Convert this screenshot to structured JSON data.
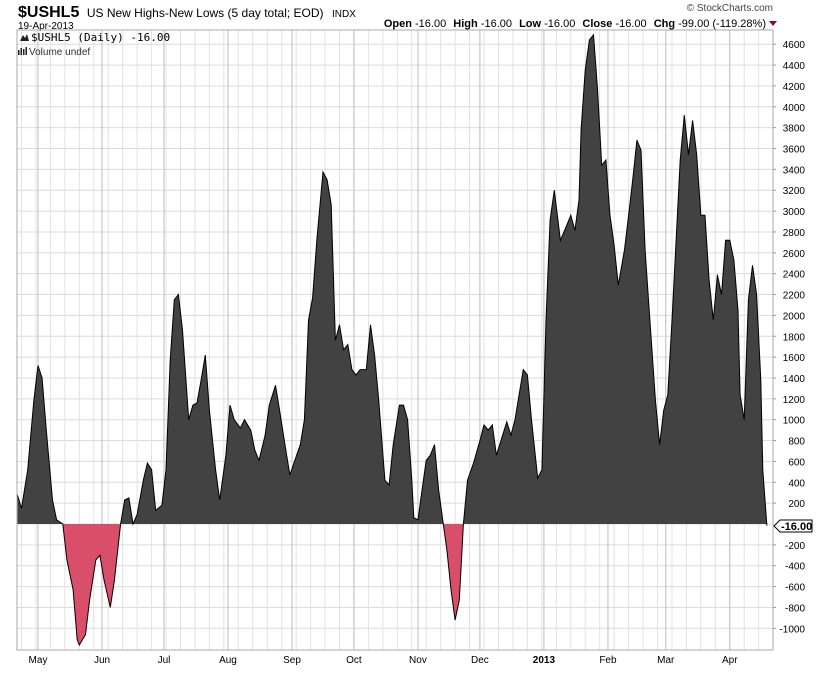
{
  "header": {
    "symbol": "$USHL5",
    "name": "US New Highs-New Lows (5 day total; EOD)",
    "exchange": "INDX",
    "date": "19-Apr-2013",
    "copyright": "© StockCharts.com",
    "open_label": "Open",
    "open_value": "-16.00",
    "high_label": "High",
    "high_value": "-16.00",
    "low_label": "Low",
    "low_value": "-16.00",
    "close_label": "Close",
    "close_value": "-16.00",
    "chg_label": "Chg",
    "chg_value": "-99.00 (-119.28%)",
    "chg_direction": "down"
  },
  "legend": {
    "series": "$USHL5 (Daily) -16.00",
    "volume": "Volume undef"
  },
  "last_value_tag": "-16.00",
  "colors": {
    "positive_fill": "#424242",
    "negative_fill": "#d94f69",
    "line": "#000000",
    "down_arrow": "#990033"
  },
  "chart_data": {
    "type": "area",
    "ylim": [
      -1200,
      4700
    ],
    "grid": true,
    "y_ticks": [
      "4600",
      "4400",
      "4200",
      "4000",
      "3800",
      "3600",
      "3400",
      "3200",
      "3000",
      "2800",
      "2600",
      "2400",
      "2200",
      "2000",
      "1800",
      "1600",
      "1400",
      "1200",
      "1000",
      "800",
      "600",
      "400",
      "200",
      "-200",
      "-400",
      "-600",
      "-800",
      "-1000"
    ],
    "x_ticks": [
      {
        "label": "May",
        "date": "2012-05-01"
      },
      {
        "label": "Jun",
        "date": "2012-06-01"
      },
      {
        "label": "Jul",
        "date": "2012-07-01"
      },
      {
        "label": "Aug",
        "date": "2012-08-01"
      },
      {
        "label": "Sep",
        "date": "2012-09-01"
      },
      {
        "label": "Oct",
        "date": "2012-10-01"
      },
      {
        "label": "Nov",
        "date": "2012-11-01"
      },
      {
        "label": "Dec",
        "date": "2012-12-01"
      },
      {
        "label": "2013",
        "date": "2013-01-01",
        "bold": true
      },
      {
        "label": "Feb",
        "date": "2013-02-01"
      },
      {
        "label": "Mar",
        "date": "2013-03-01"
      },
      {
        "label": "Apr",
        "date": "2013-04-01"
      }
    ],
    "points": [
      [
        "2012-04-21",
        280
      ],
      [
        "2012-04-23",
        150
      ],
      [
        "2012-04-26",
        520
      ],
      [
        "2012-04-29",
        1190
      ],
      [
        "2012-05-01",
        1520
      ],
      [
        "2012-05-03",
        1400
      ],
      [
        "2012-05-05",
        900
      ],
      [
        "2012-05-08",
        230
      ],
      [
        "2012-05-10",
        40
      ],
      [
        "2012-05-13",
        0
      ],
      [
        "2012-05-15",
        -345
      ],
      [
        "2012-05-18",
        -630
      ],
      [
        "2012-05-20",
        -1110
      ],
      [
        "2012-05-21",
        -1160
      ],
      [
        "2012-05-24",
        -1060
      ],
      [
        "2012-05-26",
        -730
      ],
      [
        "2012-05-29",
        -345
      ],
      [
        "2012-05-31",
        -300
      ],
      [
        "2012-06-02",
        -540
      ],
      [
        "2012-06-05",
        -800
      ],
      [
        "2012-06-07",
        -540
      ],
      [
        "2012-06-10",
        0
      ],
      [
        "2012-06-12",
        230
      ],
      [
        "2012-06-14",
        250
      ],
      [
        "2012-06-16",
        0
      ],
      [
        "2012-06-18",
        90
      ],
      [
        "2012-06-21",
        420
      ],
      [
        "2012-06-23",
        585
      ],
      [
        "2012-06-25",
        520
      ],
      [
        "2012-06-27",
        130
      ],
      [
        "2012-06-30",
        180
      ],
      [
        "2012-07-02",
        520
      ],
      [
        "2012-07-04",
        1570
      ],
      [
        "2012-07-06",
        2150
      ],
      [
        "2012-07-08",
        2200
      ],
      [
        "2012-07-10",
        1860
      ],
      [
        "2012-07-13",
        1000
      ],
      [
        "2012-07-15",
        1140
      ],
      [
        "2012-07-17",
        1160
      ],
      [
        "2012-07-19",
        1380
      ],
      [
        "2012-07-21",
        1620
      ],
      [
        "2012-07-23",
        1090
      ],
      [
        "2012-07-26",
        520
      ],
      [
        "2012-07-28",
        230
      ],
      [
        "2012-07-31",
        660
      ],
      [
        "2012-08-02",
        1140
      ],
      [
        "2012-08-04",
        1000
      ],
      [
        "2012-08-07",
        920
      ],
      [
        "2012-08-09",
        1000
      ],
      [
        "2012-08-12",
        900
      ],
      [
        "2012-08-14",
        710
      ],
      [
        "2012-08-16",
        610
      ],
      [
        "2012-08-19",
        850
      ],
      [
        "2012-08-21",
        1140
      ],
      [
        "2012-08-24",
        1330
      ],
      [
        "2012-08-26",
        1090
      ],
      [
        "2012-08-29",
        710
      ],
      [
        "2012-08-31",
        470
      ],
      [
        "2012-09-02",
        590
      ],
      [
        "2012-09-05",
        760
      ],
      [
        "2012-09-07",
        1000
      ],
      [
        "2012-09-09",
        1955
      ],
      [
        "2012-09-11",
        2170
      ],
      [
        "2012-09-13",
        2720
      ],
      [
        "2012-09-16",
        3375
      ],
      [
        "2012-09-18",
        3300
      ],
      [
        "2012-09-20",
        3060
      ],
      [
        "2012-09-22",
        1760
      ],
      [
        "2012-09-24",
        1910
      ],
      [
        "2012-09-26",
        1670
      ],
      [
        "2012-09-28",
        1720
      ],
      [
        "2012-09-30",
        1480
      ],
      [
        "2012-10-02",
        1430
      ],
      [
        "2012-10-04",
        1480
      ],
      [
        "2012-10-07",
        1480
      ],
      [
        "2012-10-09",
        1910
      ],
      [
        "2012-10-11",
        1620
      ],
      [
        "2012-10-13",
        1190
      ],
      [
        "2012-10-16",
        420
      ],
      [
        "2012-10-18",
        375
      ],
      [
        "2012-10-20",
        760
      ],
      [
        "2012-10-23",
        1140
      ],
      [
        "2012-10-25",
        1140
      ],
      [
        "2012-10-27",
        1000
      ],
      [
        "2012-10-29",
        420
      ],
      [
        "2012-10-30",
        60
      ],
      [
        "2012-11-01",
        40
      ],
      [
        "2012-11-03",
        330
      ],
      [
        "2012-11-05",
        610
      ],
      [
        "2012-11-07",
        660
      ],
      [
        "2012-11-09",
        760
      ],
      [
        "2012-11-11",
        330
      ],
      [
        "2012-11-13",
        40
      ],
      [
        "2012-11-15",
        -250
      ],
      [
        "2012-11-17",
        -630
      ],
      [
        "2012-11-19",
        -920
      ],
      [
        "2012-11-21",
        -730
      ],
      [
        "2012-11-23",
        0
      ],
      [
        "2012-11-25",
        420
      ],
      [
        "2012-11-28",
        590
      ],
      [
        "2012-12-01",
        800
      ],
      [
        "2012-12-03",
        950
      ],
      [
        "2012-12-05",
        900
      ],
      [
        "2012-12-07",
        950
      ],
      [
        "2012-12-09",
        660
      ],
      [
        "2012-12-12",
        850
      ],
      [
        "2012-12-14",
        980
      ],
      [
        "2012-12-16",
        850
      ],
      [
        "2012-12-18",
        1000
      ],
      [
        "2012-12-20",
        1240
      ],
      [
        "2012-12-22",
        1480
      ],
      [
        "2012-12-24",
        1430
      ],
      [
        "2012-12-26",
        1000
      ],
      [
        "2012-12-29",
        440
      ],
      [
        "2012-12-31",
        520
      ],
      [
        "2013-01-02",
        1955
      ],
      [
        "2013-01-04",
        2915
      ],
      [
        "2013-01-06",
        3200
      ],
      [
        "2013-01-09",
        2720
      ],
      [
        "2013-01-11",
        2815
      ],
      [
        "2013-01-14",
        2960
      ],
      [
        "2013-01-16",
        2815
      ],
      [
        "2013-01-18",
        3105
      ],
      [
        "2013-01-19",
        3780
      ],
      [
        "2013-01-21",
        4350
      ],
      [
        "2013-01-23",
        4640
      ],
      [
        "2013-01-25",
        4690
      ],
      [
        "2013-01-27",
        4160
      ],
      [
        "2013-01-29",
        3440
      ],
      [
        "2013-01-31",
        3490
      ],
      [
        "2013-02-02",
        2960
      ],
      [
        "2013-02-04",
        2675
      ],
      [
        "2013-02-06",
        2290
      ],
      [
        "2013-02-09",
        2630
      ],
      [
        "2013-02-11",
        2960
      ],
      [
        "2013-02-13",
        3300
      ],
      [
        "2013-02-15",
        3680
      ],
      [
        "2013-02-17",
        3585
      ],
      [
        "2013-02-19",
        2630
      ],
      [
        "2013-02-21",
        2050
      ],
      [
        "2013-02-24",
        1190
      ],
      [
        "2013-02-26",
        760
      ],
      [
        "2013-02-28",
        1090
      ],
      [
        "2013-03-02",
        1240
      ],
      [
        "2013-03-04",
        1955
      ],
      [
        "2013-03-06",
        2720
      ],
      [
        "2013-03-08",
        3490
      ],
      [
        "2013-03-10",
        3920
      ],
      [
        "2013-03-12",
        3540
      ],
      [
        "2013-03-14",
        3870
      ],
      [
        "2013-03-16",
        3540
      ],
      [
        "2013-03-18",
        2960
      ],
      [
        "2013-03-20",
        2960
      ],
      [
        "2013-03-22",
        2340
      ],
      [
        "2013-03-24",
        1955
      ],
      [
        "2013-03-26",
        2390
      ],
      [
        "2013-03-28",
        2200
      ],
      [
        "2013-03-30",
        2720
      ],
      [
        "2013-04-01",
        2720
      ],
      [
        "2013-04-03",
        2530
      ],
      [
        "2013-04-05",
        2050
      ],
      [
        "2013-04-06",
        1240
      ],
      [
        "2013-04-08",
        1000
      ],
      [
        "2013-04-10",
        2150
      ],
      [
        "2013-04-12",
        2480
      ],
      [
        "2013-04-14",
        2200
      ],
      [
        "2013-04-16",
        1380
      ],
      [
        "2013-04-17",
        520
      ],
      [
        "2013-04-19",
        -16
      ]
    ]
  }
}
